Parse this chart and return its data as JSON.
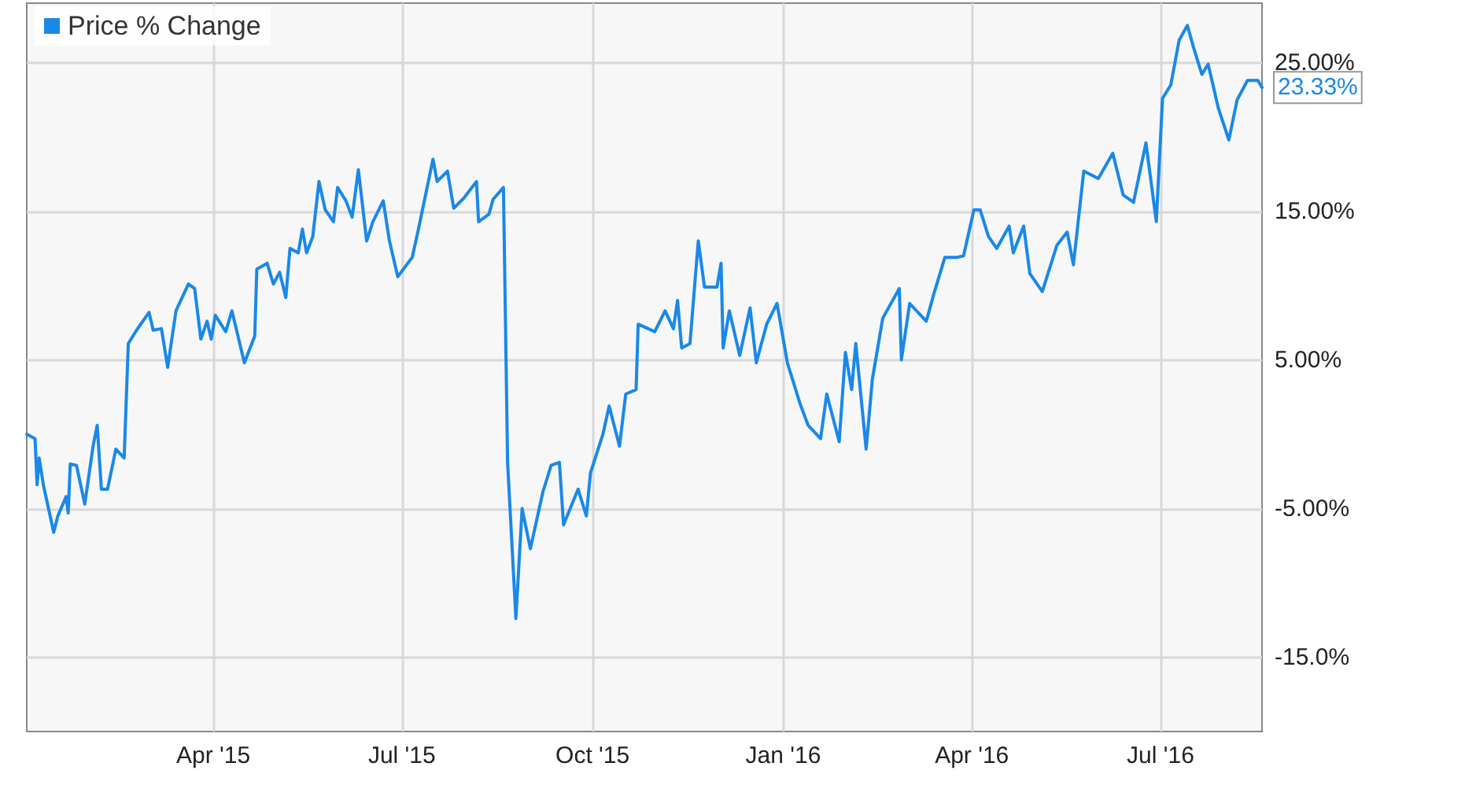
{
  "chart_data": {
    "type": "line",
    "legend": "top left",
    "grid": true,
    "marker": "none",
    "line_style": "solid",
    "xlim": [
      "2015-01-01",
      "2016-08-19"
    ],
    "xticks": [
      {
        "value": "2015-04-01",
        "label": "Apr '15"
      },
      {
        "value": "2015-07-01",
        "label": "Jul '15"
      },
      {
        "value": "2015-10-01",
        "label": "Oct '15"
      },
      {
        "value": "2016-01-01",
        "label": "Jan '16"
      },
      {
        "value": "2016-04-01",
        "label": "Apr '16"
      },
      {
        "value": "2016-07-01",
        "label": "Jul '16"
      }
    ],
    "ylim": [
      -20,
      29
    ],
    "yticks": [
      {
        "value": -15,
        "label": "-15.0%"
      },
      {
        "value": -5,
        "label": "-5.00%"
      },
      {
        "value": 5,
        "label": "5.00%"
      },
      {
        "value": 15,
        "label": "15.00%"
      },
      {
        "value": 25,
        "label": "25.00%"
      }
    ],
    "annotations": [
      {
        "text": "23.33%",
        "x": "2016-08-19",
        "y": 23.33
      }
    ],
    "x": [
      "2015-01-01",
      "2015-01-05",
      "2015-01-06",
      "2015-01-07",
      "2015-01-09",
      "2015-01-14",
      "2015-01-16",
      "2015-01-20",
      "2015-01-21",
      "2015-01-22",
      "2015-01-25",
      "2015-01-29",
      "2015-02-02",
      "2015-02-04",
      "2015-02-06",
      "2015-02-09",
      "2015-02-13",
      "2015-02-17",
      "2015-02-19",
      "2015-02-23",
      "2015-03-01",
      "2015-03-03",
      "2015-03-07",
      "2015-03-10",
      "2015-03-14",
      "2015-03-20",
      "2015-03-23",
      "2015-03-26",
      "2015-03-29",
      "2015-03-31",
      "2015-04-02",
      "2015-04-07",
      "2015-04-10",
      "2015-04-16",
      "2015-04-21",
      "2015-04-22",
      "2015-04-27",
      "2015-04-30",
      "2015-05-03",
      "2015-05-06",
      "2015-05-08",
      "2015-05-12",
      "2015-05-14",
      "2015-05-16",
      "2015-05-19",
      "2015-05-22",
      "2015-05-25",
      "2015-05-29",
      "2015-05-31",
      "2015-06-04",
      "2015-06-07",
      "2015-06-10",
      "2015-06-14",
      "2015-06-17",
      "2015-06-22",
      "2015-06-25",
      "2015-06-29",
      "2015-07-06",
      "2015-07-09",
      "2015-07-16",
      "2015-07-18",
      "2015-07-23",
      "2015-07-26",
      "2015-07-31",
      "2015-08-06",
      "2015-08-07",
      "2015-08-12",
      "2015-08-14",
      "2015-08-19",
      "2015-08-21",
      "2015-08-25",
      "2015-08-28",
      "2015-09-01",
      "2015-09-04",
      "2015-09-07",
      "2015-09-11",
      "2015-09-15",
      "2015-09-17",
      "2015-09-24",
      "2015-09-28",
      "2015-09-30",
      "2015-10-06",
      "2015-10-09",
      "2015-10-14",
      "2015-10-17",
      "2015-10-22",
      "2015-10-23",
      "2015-10-31",
      "2015-11-05",
      "2015-11-09",
      "2015-11-11",
      "2015-11-13",
      "2015-11-17",
      "2015-11-21",
      "2015-11-24",
      "2015-11-30",
      "2015-12-02",
      "2015-12-03",
      "2015-12-06",
      "2015-12-11",
      "2015-12-16",
      "2015-12-19",
      "2015-12-24",
      "2015-12-29",
      "2016-01-03",
      "2016-01-09",
      "2016-01-13",
      "2016-01-19",
      "2016-01-22",
      "2016-01-28",
      "2016-01-31",
      "2016-02-03",
      "2016-02-05",
      "2016-02-10",
      "2016-02-13",
      "2016-02-18",
      "2016-02-26",
      "2016-02-27",
      "2016-03-02",
      "2016-03-10",
      "2016-03-14",
      "2016-03-19",
      "2016-03-25",
      "2016-03-28",
      "2016-04-02",
      "2016-04-05",
      "2016-04-09",
      "2016-04-13",
      "2016-04-19",
      "2016-04-21",
      "2016-04-26",
      "2016-04-29",
      "2016-05-05",
      "2016-05-12",
      "2016-05-17",
      "2016-05-20",
      "2016-05-25",
      "2016-06-01",
      "2016-06-08",
      "2016-06-13",
      "2016-06-18",
      "2016-06-24",
      "2016-06-29",
      "2016-07-02",
      "2016-07-06",
      "2016-07-10",
      "2016-07-14",
      "2016-07-17",
      "2016-07-21",
      "2016-07-24",
      "2016-07-29",
      "2016-08-03",
      "2016-08-07",
      "2016-08-12",
      "2016-08-17",
      "2016-08-19"
    ],
    "series": [
      {
        "name": "Price % Change",
        "color": "#1a88e8",
        "values": [
          0.0,
          -0.3,
          -3.4,
          -1.6,
          -3.4,
          -6.6,
          -5.5,
          -4.2,
          -5.3,
          -2.0,
          -2.1,
          -4.7,
          -0.8,
          0.6,
          -3.7,
          -3.7,
          -1.0,
          -1.6,
          6.1,
          7.0,
          8.2,
          7.0,
          7.1,
          4.5,
          8.3,
          10.1,
          9.8,
          6.4,
          7.6,
          6.4,
          8.0,
          6.9,
          8.3,
          4.8,
          6.6,
          11.1,
          11.5,
          10.1,
          10.9,
          9.2,
          12.5,
          12.2,
          13.8,
          12.2,
          13.3,
          17.0,
          15.1,
          14.3,
          16.6,
          15.7,
          14.6,
          17.8,
          13.0,
          14.3,
          15.7,
          13.0,
          10.6,
          11.9,
          13.8,
          18.5,
          17.0,
          17.7,
          15.2,
          15.9,
          17.0,
          14.3,
          14.8,
          15.8,
          16.6,
          -1.9,
          -12.4,
          -5.0,
          -7.7,
          -5.8,
          -3.9,
          -2.1,
          -1.9,
          -6.1,
          -3.7,
          -5.5,
          -2.6,
          0.0,
          1.9,
          -0.8,
          2.7,
          3.0,
          7.4,
          6.9,
          8.3,
          7.1,
          9.0,
          5.8,
          6.1,
          13.0,
          9.9,
          9.9,
          11.5,
          5.8,
          8.3,
          5.3,
          8.5,
          4.8,
          7.4,
          8.8,
          4.8,
          2.1,
          0.6,
          -0.3,
          2.7,
          -0.5,
          5.5,
          3.0,
          6.1,
          -1.0,
          3.7,
          7.8,
          9.8,
          5.0,
          8.8,
          7.6,
          9.6,
          11.9,
          11.9,
          12.0,
          15.1,
          15.1,
          13.3,
          12.5,
          14.0,
          12.2,
          14.0,
          10.8,
          9.6,
          12.7,
          13.6,
          11.4,
          17.7,
          17.2,
          18.9,
          16.1,
          15.6,
          19.6,
          14.3,
          22.6,
          23.5,
          26.5,
          27.5,
          26.0,
          24.2,
          24.9,
          21.9,
          19.8,
          22.5,
          23.8,
          23.8,
          23.33
        ]
      }
    ]
  }
}
